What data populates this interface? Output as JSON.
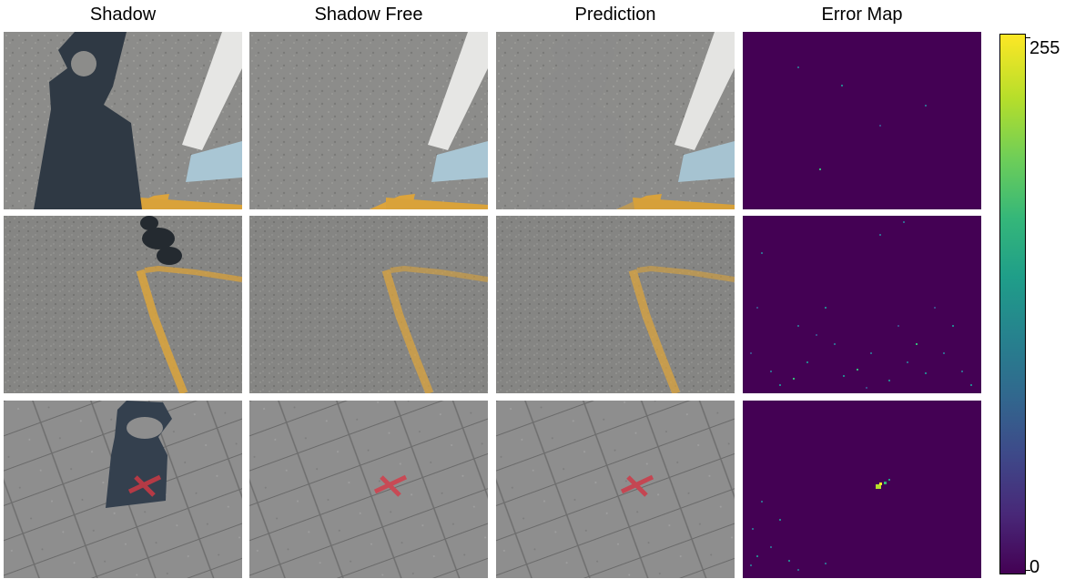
{
  "columns": {
    "shadow": "Shadow",
    "shadow_free": "Shadow Free",
    "prediction": "Prediction",
    "error_map": "Error Map"
  },
  "colorbar": {
    "max_label": "255",
    "min_label": "0",
    "colormap": "viridis",
    "range": [
      0,
      255
    ]
  },
  "colors": {
    "error_background": "#440154",
    "pavement_gray": "#8a8a8a",
    "shadow_dark": "#2c3540",
    "road_marking_yellow": "#e0a838",
    "marking_white": "#e8e8e8",
    "marking_light_blue": "#a8c8d8",
    "cross_red": "#c0404a"
  },
  "rows": [
    {
      "scene": "paving tiles with white, light-blue and yellow tactile markings; bag-shaped shadow"
    },
    {
      "scene": "asphalt with yellow line; small shadow at top"
    },
    {
      "scene": "brick paving with red cross mark; bag-shaped shadow"
    }
  ]
}
